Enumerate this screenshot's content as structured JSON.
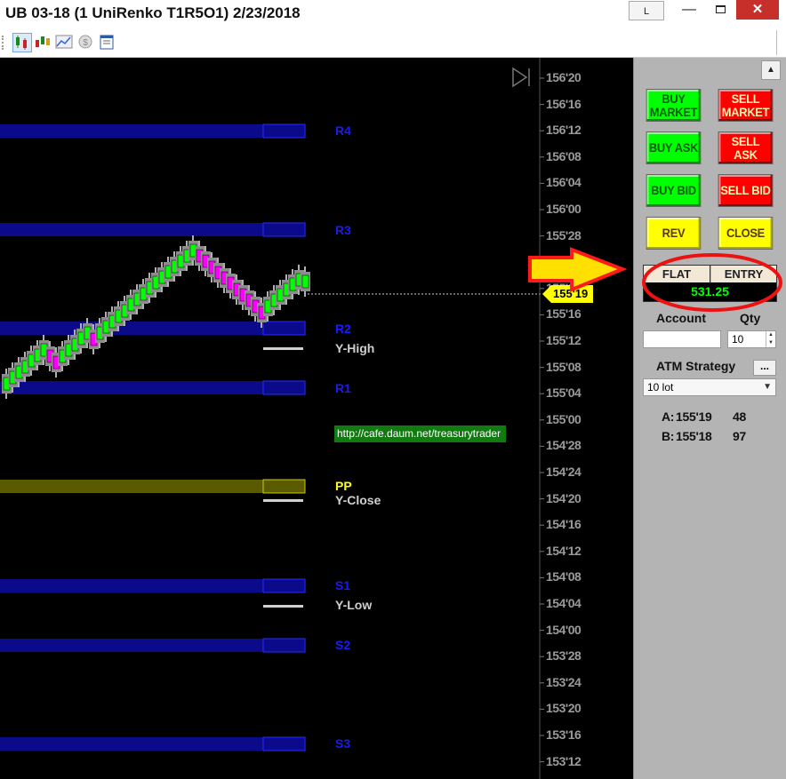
{
  "window": {
    "title": "UB 03-18 (1 UniRenko T1R5O1)  2/23/2018",
    "link_button_label": "L",
    "minimize_label": "—",
    "close_label": "✕"
  },
  "toolbar": {
    "icons": [
      "chart-bars-icon",
      "candlestick-icon",
      "line-chart-icon",
      "dollar-icon",
      "properties-icon"
    ]
  },
  "chart": {
    "price_axis": [
      "156'20",
      "156'16",
      "156'12",
      "156'08",
      "156'04",
      "156'00",
      "155'28",
      "155'24",
      "155'20",
      "155'16",
      "155'12",
      "155'08",
      "155'04",
      "155'00",
      "154'28",
      "154'24",
      "154'20",
      "154'16",
      "154'12",
      "154'08",
      "154'04",
      "154'00",
      "153'28",
      "153'24",
      "153'20",
      "153'16",
      "153'12"
    ],
    "last_price": "155'19",
    "pivots": {
      "r4": "R4",
      "r3": "R3",
      "r2": "R2",
      "r1": "R1",
      "pp": "PP",
      "s1": "S1",
      "s2": "S2",
      "s3": "S3"
    },
    "references": {
      "y_high": "Y-High",
      "y_close": "Y-Close",
      "y_low": "Y-Low"
    },
    "watermark_url": "http://cafe.daum.net/treasurytrader",
    "colors": {
      "up_bar": "#00ff00",
      "down_bar": "#ff00ff",
      "pivot_band": "#0a0a8a",
      "pp_band": "#5a5a00",
      "price_marker": "#ffff00"
    }
  },
  "order_panel": {
    "buttons": {
      "buy_market": "BUY MARKET",
      "sell_market": "SELL MARKET",
      "buy_ask": "BUY ASK",
      "sell_ask": "SELL ASK",
      "buy_bid": "BUY BID",
      "sell_bid": "SELL BID",
      "rev": "REV",
      "close": "CLOSE"
    },
    "position": {
      "status": "FLAT",
      "entry_label": "ENTRY",
      "pnl": "531.25"
    },
    "account_label": "Account",
    "qty_label": "Qty",
    "qty_value": "10",
    "atm_label": "ATM Strategy",
    "atm_more_label": "...",
    "atm_selected": "10 lot",
    "quotes": {
      "ask_label": "A:",
      "ask_price": "155'19",
      "ask_size": "48",
      "bid_label": "B:",
      "bid_price": "155'18",
      "bid_size": "97"
    }
  }
}
